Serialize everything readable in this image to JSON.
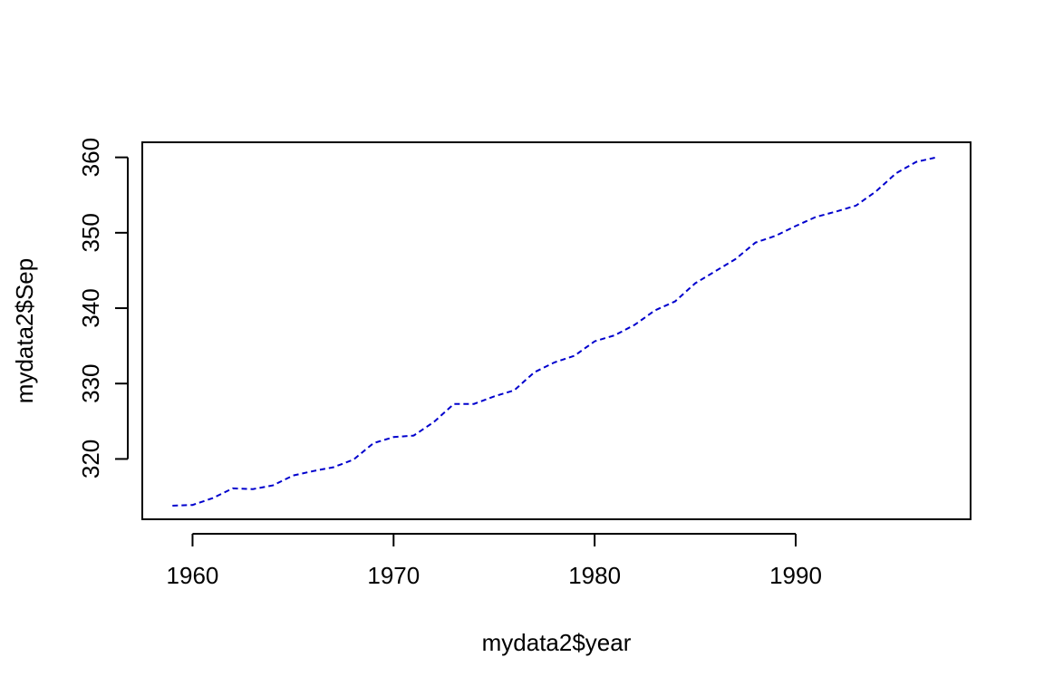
{
  "chart_data": {
    "type": "line",
    "xlabel": "mydata2$year",
    "ylabel": "mydata2$Sep",
    "xlim": [
      1957.5,
      1998.7
    ],
    "ylim": [
      312,
      362
    ],
    "x_ticks": [
      1960,
      1970,
      1980,
      1990
    ],
    "y_ticks": [
      320,
      330,
      340,
      350,
      360
    ],
    "grid": false,
    "line_style": "dashed",
    "line_color": "#0000CD",
    "x": [
      1959,
      1960,
      1961,
      1962,
      1963,
      1964,
      1965,
      1966,
      1967,
      1968,
      1969,
      1970,
      1971,
      1972,
      1973,
      1974,
      1975,
      1976,
      1977,
      1978,
      1979,
      1980,
      1981,
      1982,
      1983,
      1984,
      1985,
      1986,
      1987,
      1988,
      1989,
      1990,
      1991,
      1992,
      1993,
      1994,
      1995,
      1996,
      1997
    ],
    "y": [
      313.8,
      313.9,
      314.8,
      316.1,
      316.0,
      316.5,
      317.8,
      318.4,
      318.9,
      319.9,
      322.1,
      322.9,
      323.1,
      324.9,
      327.3,
      327.3,
      328.3,
      329.1,
      331.5,
      332.8,
      333.7,
      335.6,
      336.4,
      337.8,
      339.7,
      340.9,
      343.3,
      344.9,
      346.5,
      348.7,
      349.6,
      350.9,
      352.1,
      352.8,
      353.6,
      355.5,
      357.9,
      359.4,
      360.0
    ]
  }
}
